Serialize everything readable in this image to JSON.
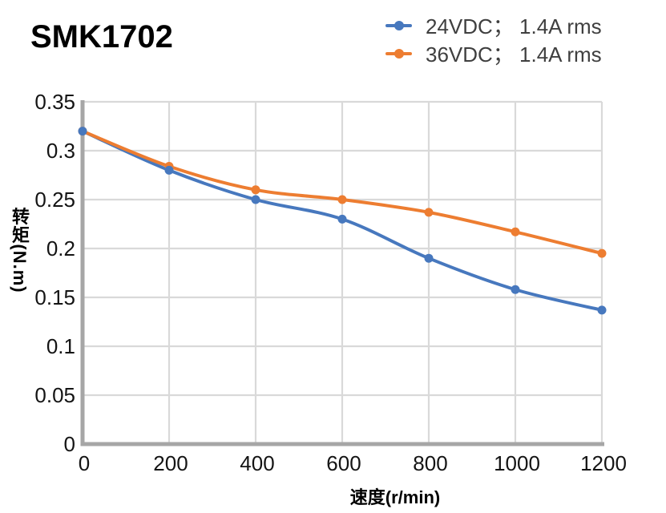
{
  "chart_data": {
    "type": "line",
    "title": "SMK1702",
    "x": [
      0,
      200,
      400,
      600,
      800,
      1000,
      1200
    ],
    "series": [
      {
        "name": "24VDC； 1.4A rms",
        "color": "#4778BE",
        "marker": "circle",
        "values": [
          0.32,
          0.28,
          0.25,
          0.23,
          0.19,
          0.158,
          0.137
        ]
      },
      {
        "name": "36VDC； 1.4A rms",
        "color": "#ED7D31",
        "marker": "circle",
        "values": [
          0.32,
          0.284,
          0.26,
          0.25,
          0.237,
          0.217,
          0.195
        ]
      }
    ],
    "xlabel": "速度(r/min)",
    "ylabel": "转矩(N.m)",
    "xlim": [
      0,
      1200
    ],
    "ylim": [
      0,
      0.35
    ],
    "x_ticks": [
      0,
      200,
      400,
      600,
      800,
      1000,
      1200
    ],
    "y_ticks": [
      0,
      0.05,
      0.1,
      0.15,
      0.2,
      0.25,
      0.3,
      0.35
    ],
    "grid": true,
    "legend_position": "top-right",
    "line_smooth": true,
    "styles": {
      "grid_color": "#D9D9D9",
      "axis_color": "#A6A6A6",
      "tick_color": "#141414",
      "legend_text_color": "#3F3F3F",
      "title_color": "#000000"
    }
  }
}
